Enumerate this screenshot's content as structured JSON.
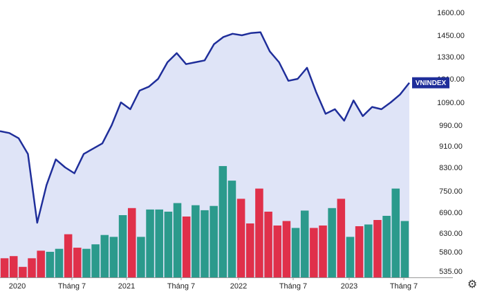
{
  "chart_data": {
    "type": "line",
    "index_label": "VNINDEX",
    "colors": {
      "line": "#1f2e9a",
      "area": "#dfe4f7",
      "up": "#2b9a8c",
      "down": "#e0304a",
      "label_bg": "#1f2e9a"
    },
    "y_ticks": [
      "1600.00",
      "1450.00",
      "1330.00",
      "1210.00",
      "1090.00",
      "990.00",
      "910.00",
      "830.00",
      "750.00",
      "690.00",
      "630.00",
      "580.00",
      "535.00"
    ],
    "x_ticks": [
      "2020",
      "Tháng 7",
      "2021",
      "Tháng 7",
      "2022",
      "Tháng 7",
      "2023",
      "Tháng 7"
    ],
    "price_series": [
      967,
      960,
      940,
      880,
      660,
      770,
      860,
      830,
      810,
      880,
      900,
      920,
      990,
      1090,
      1060,
      1150,
      1170,
      1210,
      1300,
      1350,
      1290,
      1300,
      1310,
      1400,
      1440,
      1460,
      1450,
      1465,
      1470,
      1360,
      1300,
      1200,
      1210,
      1270,
      1140,
      1040,
      1060,
      1010,
      1100,
      1030,
      1070,
      1060,
      1090,
      1130,
      1190
    ],
    "volume_bars": [
      {
        "v": 565,
        "dir": "down"
      },
      {
        "v": 570,
        "dir": "down"
      },
      {
        "v": 545,
        "dir": "down"
      },
      {
        "v": 565,
        "dir": "down"
      },
      {
        "v": 583,
        "dir": "down"
      },
      {
        "v": 580,
        "dir": "up"
      },
      {
        "v": 588,
        "dir": "up"
      },
      {
        "v": 627,
        "dir": "down"
      },
      {
        "v": 591,
        "dir": "down"
      },
      {
        "v": 588,
        "dir": "up"
      },
      {
        "v": 600,
        "dir": "up"
      },
      {
        "v": 625,
        "dir": "up"
      },
      {
        "v": 620,
        "dir": "up"
      },
      {
        "v": 682,
        "dir": "up"
      },
      {
        "v": 702,
        "dir": "down"
      },
      {
        "v": 620,
        "dir": "up"
      },
      {
        "v": 698,
        "dir": "up"
      },
      {
        "v": 698,
        "dir": "up"
      },
      {
        "v": 692,
        "dir": "up"
      },
      {
        "v": 716,
        "dir": "up"
      },
      {
        "v": 678,
        "dir": "down"
      },
      {
        "v": 710,
        "dir": "up"
      },
      {
        "v": 696,
        "dir": "up"
      },
      {
        "v": 708,
        "dir": "up"
      },
      {
        "v": 835,
        "dir": "up"
      },
      {
        "v": 785,
        "dir": "up"
      },
      {
        "v": 728,
        "dir": "down"
      },
      {
        "v": 658,
        "dir": "down"
      },
      {
        "v": 758,
        "dir": "down"
      },
      {
        "v": 692,
        "dir": "down"
      },
      {
        "v": 652,
        "dir": "down"
      },
      {
        "v": 665,
        "dir": "down"
      },
      {
        "v": 645,
        "dir": "up"
      },
      {
        "v": 695,
        "dir": "up"
      },
      {
        "v": 645,
        "dir": "down"
      },
      {
        "v": 652,
        "dir": "down"
      },
      {
        "v": 702,
        "dir": "up"
      },
      {
        "v": 728,
        "dir": "down"
      },
      {
        "v": 620,
        "dir": "up"
      },
      {
        "v": 650,
        "dir": "down"
      },
      {
        "v": 655,
        "dir": "up"
      },
      {
        "v": 668,
        "dir": "down"
      },
      {
        "v": 680,
        "dir": "up"
      },
      {
        "v": 758,
        "dir": "up"
      },
      {
        "v": 665,
        "dir": "up"
      }
    ],
    "current_value": 1190,
    "grid": false
  }
}
